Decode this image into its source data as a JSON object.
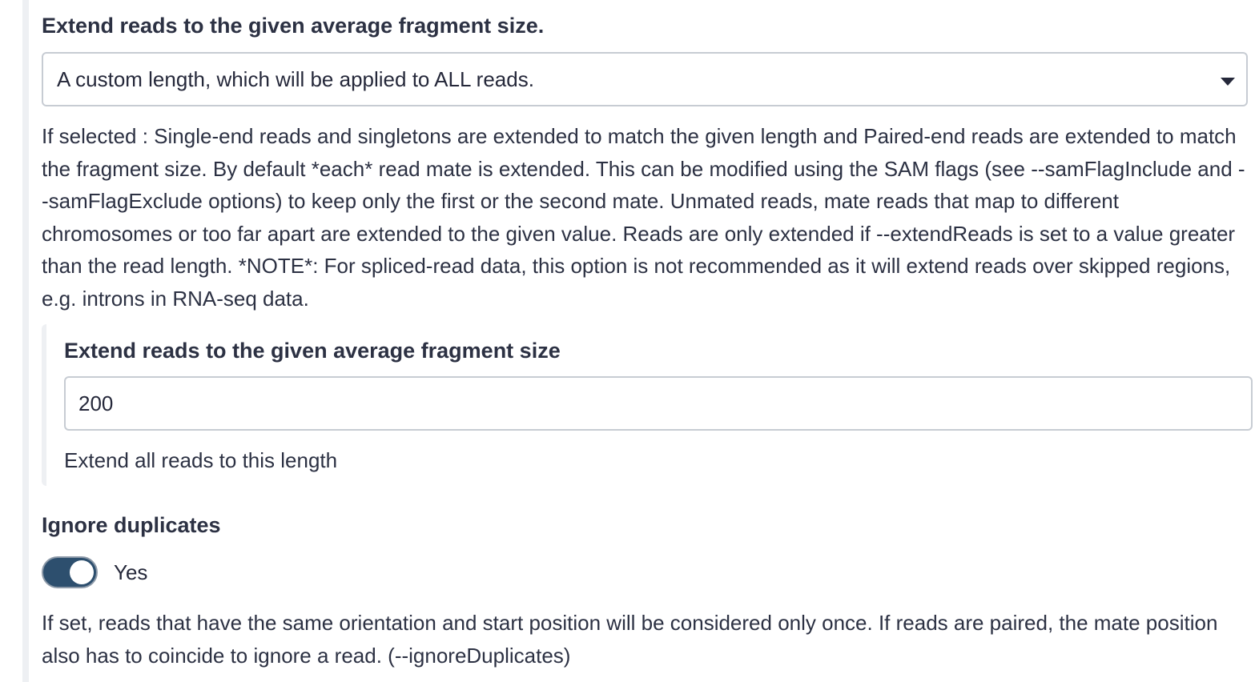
{
  "extend_reads": {
    "label": "Extend reads to the given average fragment size.",
    "selected_option": "A custom length, which will be applied to ALL reads.",
    "help_text": "If selected : Single-end reads and singletons are extended to match the given length and Paired-end reads are extended to match the fragment size. By default *each* read mate is extended. This can be modified using the SAM flags (see --samFlagInclude and --samFlagExclude options) to keep only the first or the second mate. Unmated reads, mate reads that map to different chromosomes or too far apart are extended to the given value. Reads are only extended if --extendReads is set to a value greater than the read length. *NOTE*: For spliced-read data, this option is not recommended as it will extend reads over skipped regions, e.g. introns in RNA-seq data.",
    "fragment_size": {
      "label": "Extend reads to the given average fragment size",
      "value": "200",
      "help_text": "Extend all reads to this length"
    }
  },
  "ignore_duplicates": {
    "label": "Ignore duplicates",
    "toggle_state": "Yes",
    "toggle_on": true,
    "help_text": "If set, reads that have the same orientation and start position will be considered only once. If reads are paired, the mate position also has to coincide to ignore a read. (--ignoreDuplicates)"
  },
  "colors": {
    "text": "#2c3143",
    "border": "#c7ccd3",
    "toggle_on": "#2d4f6e",
    "rule": "#eef0f3"
  }
}
